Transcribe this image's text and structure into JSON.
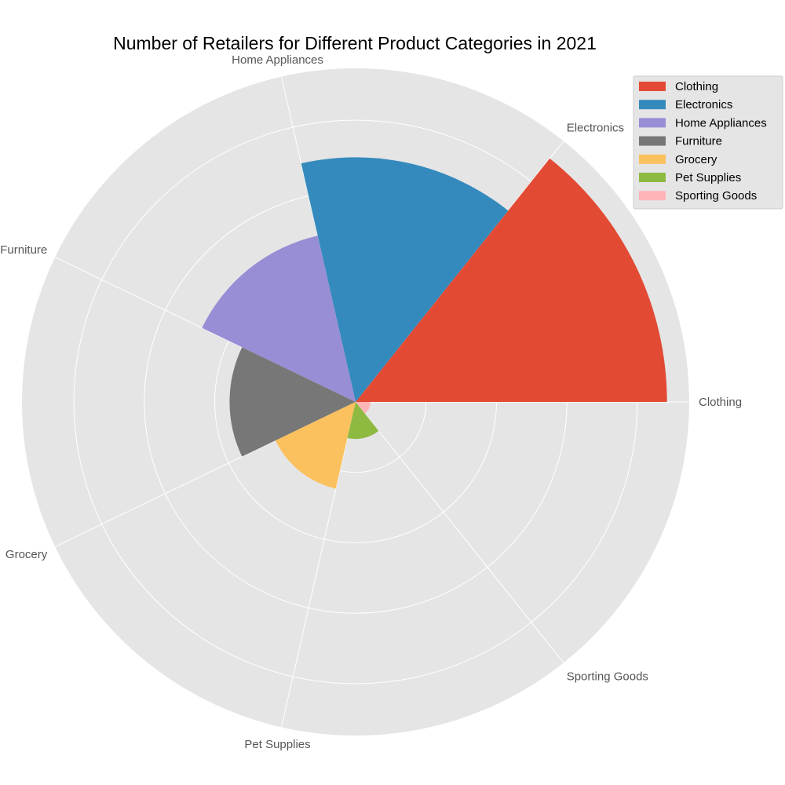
{
  "chart_data": {
    "type": "polar-bar",
    "title": "Number of Retailers for Different Product Categories in 2021",
    "categories": [
      "Clothing",
      "Electronics",
      "Home Appliances",
      "Furniture",
      "Grocery",
      "Pet Supplies",
      "Sporting Goods"
    ],
    "values": [
      4200,
      3300,
      2300,
      1700,
      1200,
      500,
      200
    ],
    "colors": [
      "#E24A33",
      "#348ABD",
      "#988ED5",
      "#777777",
      "#FBC15E",
      "#8EBA42",
      "#FFB5B8"
    ],
    "rlim": [
      0,
      4500
    ],
    "radial_grid": [
      950,
      1900,
      2850,
      3800
    ],
    "grid": true,
    "legend_position": "top-right",
    "background": "#E5E5E5"
  }
}
